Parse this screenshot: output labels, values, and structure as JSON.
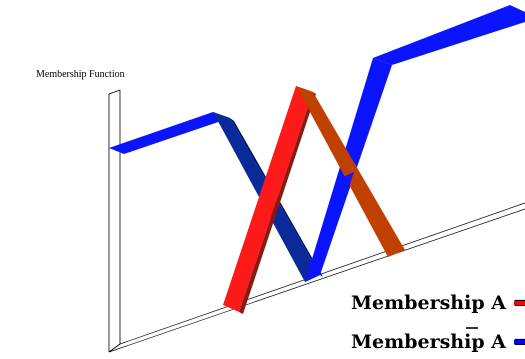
{
  "axis": {
    "title": "Membership Function"
  },
  "legend": {
    "items": [
      {
        "prefix": "Membership ",
        "symbol": "A",
        "overline": false,
        "suffix": " =",
        "color": "#ff0000"
      },
      {
        "prefix": "Membership ",
        "symbol": "A",
        "overline": true,
        "suffix": " =",
        "color": "#0000ff"
      }
    ]
  },
  "colors": {
    "red_front": "#ff1a1a",
    "red_side": "#c04000",
    "red_dark": "#8a1a10",
    "blue_front": "#0a14ff",
    "blue_side": "#0a2a9a",
    "blue_dark": "#00126e"
  }
}
